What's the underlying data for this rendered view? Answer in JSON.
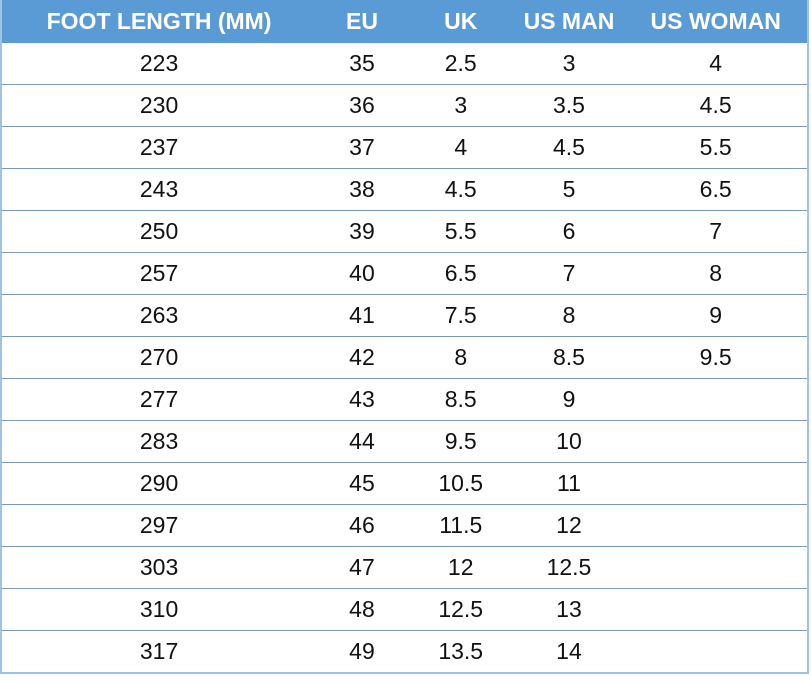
{
  "headers": [
    "FOOT LENGTH (MM)",
    "EU",
    "UK",
    "US MAN",
    "US WOMAN"
  ],
  "rows": [
    [
      "223",
      "35",
      "2.5",
      "3",
      "4"
    ],
    [
      "230",
      "36",
      "3",
      "3.5",
      "4.5"
    ],
    [
      "237",
      "37",
      "4",
      "4.5",
      "5.5"
    ],
    [
      "243",
      "38",
      "4.5",
      "5",
      "6.5"
    ],
    [
      "250",
      "39",
      "5.5",
      "6",
      "7"
    ],
    [
      "257",
      "40",
      "6.5",
      "7",
      "8"
    ],
    [
      "263",
      "41",
      "7.5",
      "8",
      "9"
    ],
    [
      "270",
      "42",
      "8",
      "8.5",
      "9.5"
    ],
    [
      "277",
      "43",
      "8.5",
      "9",
      ""
    ],
    [
      "283",
      "44",
      "9.5",
      "10",
      ""
    ],
    [
      "290",
      "45",
      "10.5",
      "11",
      ""
    ],
    [
      "297",
      "46",
      "11.5",
      "12",
      ""
    ],
    [
      "303",
      "47",
      "12",
      "12.5",
      ""
    ],
    [
      "310",
      "48",
      "12.5",
      "13",
      ""
    ],
    [
      "317",
      "49",
      "13.5",
      "14",
      ""
    ]
  ],
  "colors": {
    "header_bg": "#5b9bd5",
    "header_text": "#ffffff",
    "border": "#9dc3e6"
  }
}
